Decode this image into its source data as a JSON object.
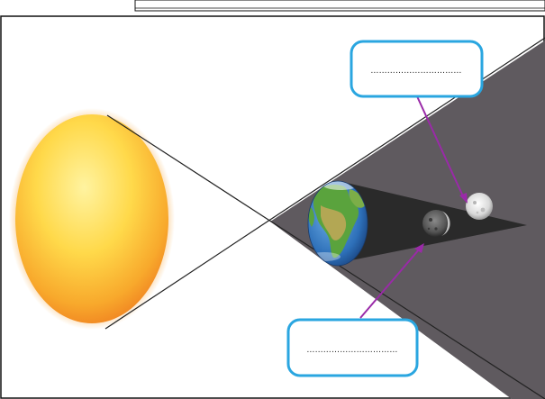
{
  "labels": {
    "top_label": "……………………………",
    "bottom_label": "……………………………"
  },
  "colors": {
    "callout_border": "#2aa6e0",
    "arrow": "#9a2aa8",
    "shadow": "#5f5a5f",
    "umbra": "#2b2b2b",
    "sun_core": "#ffe45a",
    "sun_edge": "#f08a22"
  },
  "icons": [
    "sun-icon",
    "earth-icon",
    "moon-icon"
  ]
}
